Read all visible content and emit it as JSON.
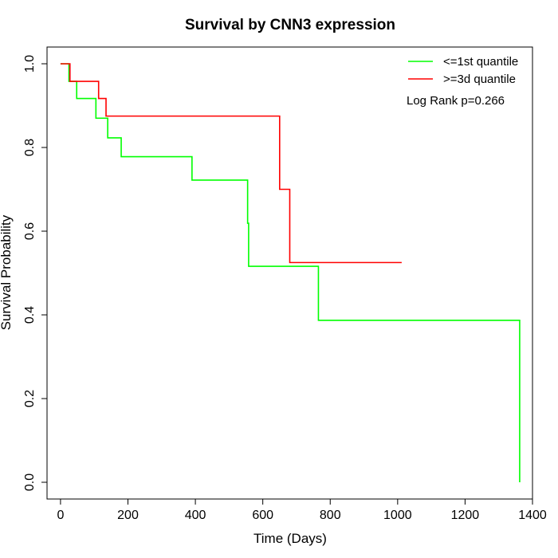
{
  "chart_data": {
    "type": "line",
    "title": "Survival by CNN3 expression",
    "xlabel": "Time (Days)",
    "ylabel": "Survival Probability",
    "xlim": [
      -40,
      1400
    ],
    "ylim": [
      -0.04,
      1.04
    ],
    "xticks": [
      0,
      200,
      400,
      600,
      800,
      1000,
      1200,
      1400
    ],
    "yticks": [
      0.0,
      0.2,
      0.4,
      0.6,
      0.8,
      1.0
    ],
    "xtick_labels": [
      "0",
      "200",
      "400",
      "600",
      "800",
      "1000",
      "1200",
      "1400"
    ],
    "ytick_labels": [
      "0.0",
      "0.2",
      "0.4",
      "0.6",
      "0.8",
      "1.0"
    ],
    "grid": false,
    "legend_position": "top-right",
    "annotation": "Log Rank p=0.266",
    "series": [
      {
        "name": "<=1st quantile",
        "color": "#00ff00",
        "step_points": [
          [
            0,
            1.0
          ],
          [
            25,
            0.958
          ],
          [
            48,
            0.917
          ],
          [
            105,
            0.87
          ],
          [
            140,
            0.823
          ],
          [
            180,
            0.778
          ],
          [
            390,
            0.722
          ],
          [
            555,
            0.619
          ],
          [
            558,
            0.516
          ],
          [
            765,
            0.387
          ],
          [
            1362,
            0.0
          ]
        ]
      },
      {
        "name": ">=3d quantile",
        "color": "#ff0000",
        "step_points": [
          [
            0,
            1.0
          ],
          [
            28,
            0.958
          ],
          [
            113,
            0.917
          ],
          [
            135,
            0.875
          ],
          [
            650,
            0.7
          ],
          [
            680,
            0.525
          ],
          [
            1012,
            0.525
          ]
        ]
      }
    ]
  }
}
